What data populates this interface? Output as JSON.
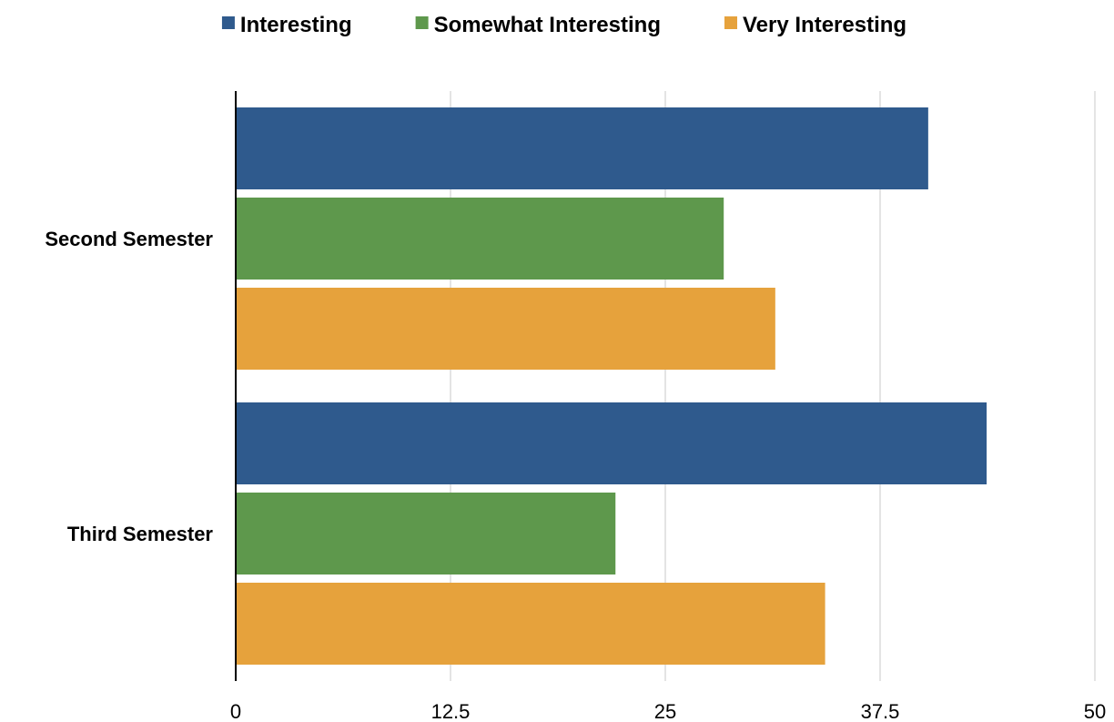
{
  "chart_data": {
    "type": "bar",
    "orientation": "horizontal",
    "categories": [
      "Second Semester",
      "Third Semester"
    ],
    "series": [
      {
        "name": "Interesting",
        "color": "#2f5a8d",
        "values": [
          40.3,
          43.7
        ]
      },
      {
        "name": "Somewhat Interesting",
        "color": "#5e984c",
        "values": [
          28.4,
          22.1
        ]
      },
      {
        "name": "Very Interesting",
        "color": "#e6a23c",
        "values": [
          31.4,
          34.3
        ]
      }
    ],
    "xlim": [
      0,
      50
    ],
    "xticks": [
      0,
      12.5,
      25,
      37.5,
      50
    ],
    "xtick_labels": [
      "0",
      "12.5",
      "25",
      "37.5",
      "50"
    ],
    "grid": "vertical",
    "legend": "top"
  }
}
